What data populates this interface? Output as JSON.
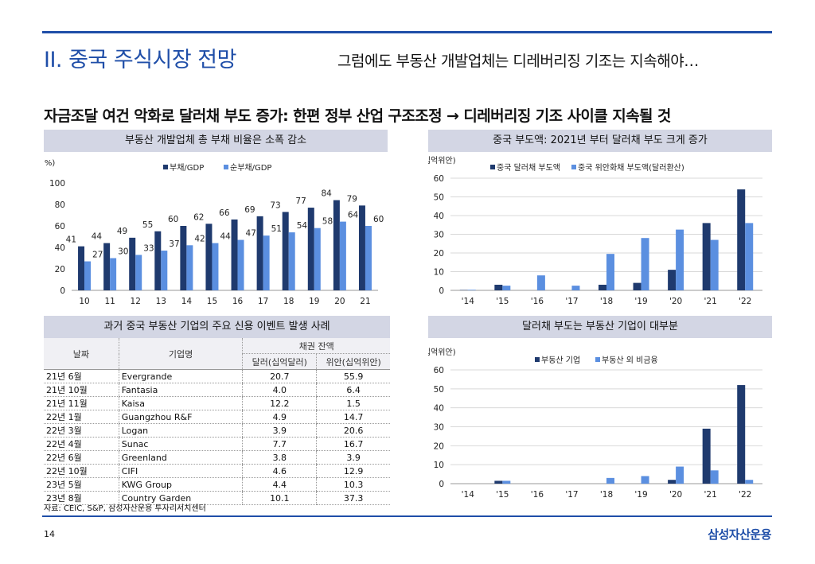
{
  "header": {
    "section_title": "II. 중국 주식시장 전망",
    "subtitle": "그럼에도 부동산 개발업체는 디레버리징 기조는 지속해야…"
  },
  "headline": "자금조달 여건 악화로 달러채 부도 증가: 한편 정부 산업 구조조정 → 디레버리징 기조 사이클 지속될 것",
  "colors": {
    "navy": "#1f3a6e",
    "light": "#5b8fe0",
    "accent": "#1f4ea8",
    "panel": "#d3d6e4"
  },
  "chart_data": [
    {
      "type": "bar",
      "title": "부동산 개발업체 총 부채 비율은 소폭 감소",
      "unit": "(%)",
      "categories": [
        "10",
        "11",
        "12",
        "13",
        "14",
        "15",
        "16",
        "17",
        "18",
        "19",
        "20",
        "21"
      ],
      "series": [
        {
          "name": "부채/GDP",
          "values": [
            41,
            44,
            49,
            55,
            60,
            62,
            66,
            69,
            73,
            77,
            84,
            79
          ]
        },
        {
          "name": "순부채/GDP",
          "values": [
            27,
            30,
            33,
            37,
            42,
            44,
            47,
            51,
            54,
            58,
            64,
            60
          ]
        }
      ],
      "ylim": [
        0,
        100
      ],
      "yticks": [
        "0",
        "20",
        "40",
        "60",
        "80",
        "100"
      ],
      "value_labels": [
        [
          "41",
          "44",
          "49",
          "55",
          "60",
          "62",
          "66",
          "69",
          "73",
          "77",
          "84",
          "79"
        ],
        [
          "27",
          "30",
          "33",
          "37",
          "42",
          "44",
          "47",
          "51",
          "54",
          "58",
          "64",
          "60"
        ]
      ]
    },
    {
      "type": "bar",
      "title": "중국 부도액: 2021년 부터 달러채 부도 크게 증가",
      "unit": "(십억위안)",
      "categories": [
        "'14",
        "'15",
        "'16",
        "'17",
        "'18",
        "'19",
        "'20",
        "'21",
        "'22"
      ],
      "series": [
        {
          "name": "중국 달러채 부도액",
          "values": [
            0.2,
            3,
            0,
            0,
            3,
            4,
            11,
            36,
            54
          ]
        },
        {
          "name": "중국 위안화채 부도액(달러환산)",
          "values": [
            0.3,
            2.5,
            8,
            2.5,
            19.5,
            28,
            32.5,
            27,
            36
          ]
        }
      ],
      "ylim": [
        0,
        60
      ],
      "yticks": [
        "0",
        "10",
        "20",
        "30",
        "40",
        "50",
        "60"
      ]
    },
    {
      "type": "bar",
      "title": "달러채 부도는 부동산 기업이 대부분",
      "unit": "(십억위안)",
      "categories": [
        "'14",
        "'15",
        "'16",
        "'17",
        "'18",
        "'19",
        "'20",
        "'21",
        "'22"
      ],
      "series": [
        {
          "name": "부동산 기업",
          "values": [
            0,
            1.5,
            0,
            0,
            0,
            0,
            2,
            29,
            52
          ]
        },
        {
          "name": "부동산 외 비금융",
          "values": [
            0,
            1.5,
            0,
            0,
            3,
            4,
            9,
            7,
            2
          ]
        }
      ],
      "ylim": [
        0,
        60
      ],
      "yticks": [
        "0",
        "10",
        "20",
        "30",
        "40",
        "50",
        "60"
      ]
    }
  ],
  "events_table": {
    "title": "과거 중국 부동산 기업의 주요 신용 이벤트 발생 사례",
    "headers": {
      "date": "날짜",
      "company": "기업명",
      "group": "채권 잔액",
      "usd": "달러(십억달러)",
      "cny": "위안(십억위안)"
    },
    "rows": [
      {
        "date": "21년 6월",
        "company": "Evergrande",
        "usd": "20.7",
        "cny": "55.9"
      },
      {
        "date": "21년 10월",
        "company": "Fantasia",
        "usd": "4.0",
        "cny": "6.4"
      },
      {
        "date": "21년 11월",
        "company": "Kaisa",
        "usd": "12.2",
        "cny": "1.5"
      },
      {
        "date": "22년 1월",
        "company": "Guangzhou R&F",
        "usd": "4.9",
        "cny": "14.7"
      },
      {
        "date": "22년 3월",
        "company": "Logan",
        "usd": "3.9",
        "cny": "20.6"
      },
      {
        "date": "22년 4월",
        "company": "Sunac",
        "usd": "7.7",
        "cny": "16.7"
      },
      {
        "date": "22년 6월",
        "company": "Greenland",
        "usd": "3.8",
        "cny": "3.9"
      },
      {
        "date": "22년 10월",
        "company": "CIFI",
        "usd": "4.6",
        "cny": "12.9"
      },
      {
        "date": "23년 5월",
        "company": "KWG Group",
        "usd": "4.4",
        "cny": "10.3"
      },
      {
        "date": "23년 8월",
        "company": "Country Garden",
        "usd": "10.1",
        "cny": "37.3"
      }
    ]
  },
  "footer": {
    "source": "자료: CEIC, S&P, 삼성자산운용 투자리서치센터",
    "page": "14",
    "brand": "삼성자산운용"
  }
}
